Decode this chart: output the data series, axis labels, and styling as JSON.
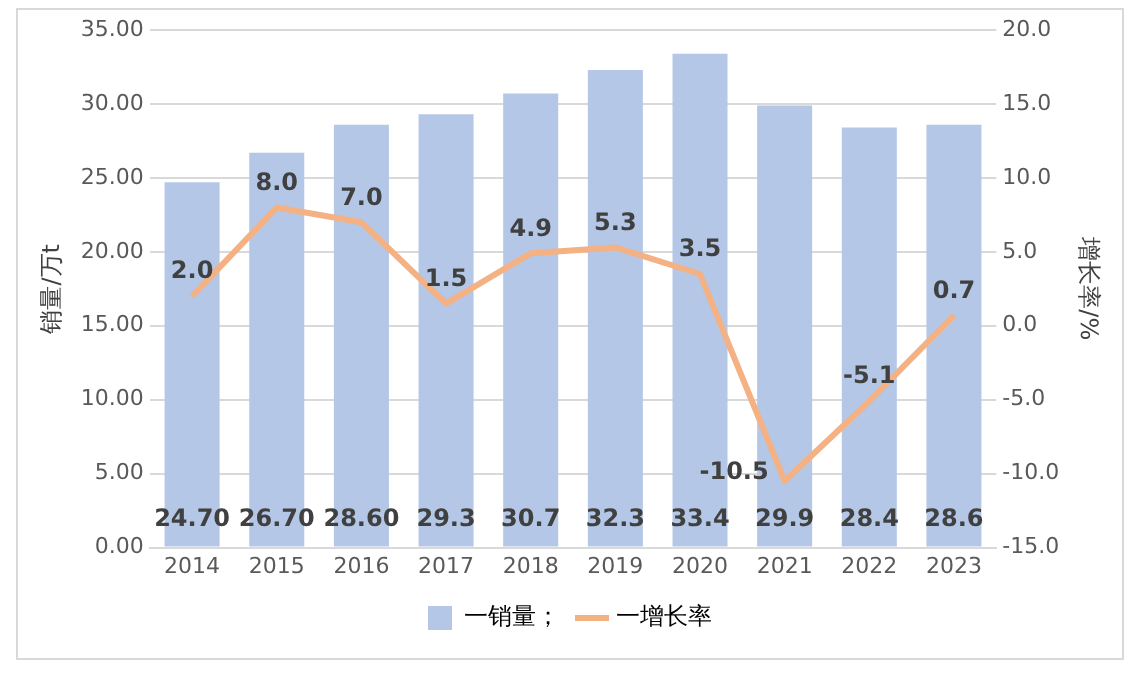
{
  "chart_data": {
    "type": "bar",
    "categories": [
      "2014",
      "2015",
      "2016",
      "2017",
      "2018",
      "2019",
      "2020",
      "2021",
      "2022",
      "2023"
    ],
    "ylabel": "销量/万t",
    "y2label": "增长率/%",
    "series": [
      {
        "name": "一销量；",
        "color": "#b4c7e7",
        "values": [
          24.7,
          26.7,
          28.6,
          29.3,
          30.7,
          32.3,
          33.4,
          29.9,
          28.4,
          28.6
        ],
        "value_labels": [
          "24.70",
          "26.70",
          "28.60",
          "29.3",
          "30.7",
          "32.3",
          "33.4",
          "29.9",
          "28.4",
          "28.6"
        ]
      },
      {
        "name": "一增长率",
        "type": "line",
        "axis": "y2",
        "color": "#f4b183",
        "values": [
          2.0,
          8.0,
          7.0,
          1.5,
          4.9,
          5.3,
          3.5,
          -10.5,
          -5.1,
          0.7
        ],
        "value_labels": [
          "2.0",
          "8.0",
          "7.0",
          "1.5",
          "4.9",
          "5.3",
          "3.5",
          "-10.5",
          "-5.1",
          "0.7"
        ]
      }
    ],
    "ylim": [
      0,
      35
    ],
    "yticks": [
      {
        "value": 0,
        "label": "0.00"
      },
      {
        "value": 5,
        "label": "5.00"
      },
      {
        "value": 10,
        "label": "10.00"
      },
      {
        "value": 15,
        "label": "15.00"
      },
      {
        "value": 20,
        "label": "20.00"
      },
      {
        "value": 25,
        "label": "25.00"
      },
      {
        "value": 30,
        "label": "30.00"
      },
      {
        "value": 35,
        "label": "35.00"
      }
    ],
    "y2lim": [
      -15,
      20
    ],
    "y2ticks": [
      {
        "value": -15,
        "label": "-15.0"
      },
      {
        "value": -10,
        "label": "-10.0"
      },
      {
        "value": -5,
        "label": "-5.0"
      },
      {
        "value": 0,
        "label": "0.0"
      },
      {
        "value": 5,
        "label": "5.0"
      },
      {
        "value": 10,
        "label": "10.0"
      },
      {
        "value": 15,
        "label": "15.0"
      },
      {
        "value": 20,
        "label": "20.0"
      }
    ],
    "grid": "y",
    "legend": "bottom",
    "marker": "none"
  }
}
